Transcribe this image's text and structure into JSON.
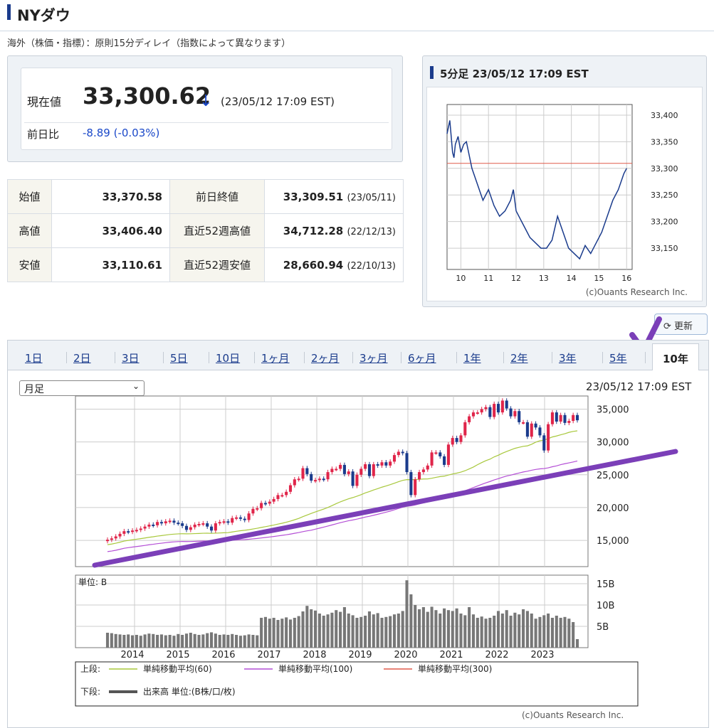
{
  "header": {
    "title": "NYダウ",
    "note": "海外（株価・指標）：原則15分ディレイ（指数によって異なります）"
  },
  "current": {
    "label": "現在値",
    "value": "33,300.62",
    "arrow": "↓",
    "timestamp": "(23/05/12 17:09 EST)",
    "change_label": "前日比",
    "change": "-8.89",
    "change_pct": "(-0.03%)"
  },
  "quotes": [
    {
      "k1": "始値",
      "v1": "33,370.58",
      "k2": "前日終値",
      "v2": "33,309.51",
      "d2": "(23/05/11)"
    },
    {
      "k1": "高値",
      "v1": "33,406.40",
      "k2": "直近52週高値",
      "v2": "34,712.28",
      "d2": "(22/12/13)"
    },
    {
      "k1": "安値",
      "v1": "33,110.61",
      "k2": "直近52週安値",
      "v2": "28,660.94",
      "d2": "(22/10/13)"
    }
  ],
  "intraday": {
    "title": "5分足 23/05/12 17:09 EST",
    "copyright": "(c)Ouants Research Inc.",
    "chart_data": {
      "type": "line",
      "x_ticks": [
        "10",
        "11",
        "12",
        "13",
        "14",
        "15",
        "16"
      ],
      "y_ticks": [
        "33,400",
        "33,350",
        "33,300",
        "33,250",
        "33,200",
        "33,150"
      ],
      "ylim": [
        33110,
        33420
      ],
      "xlim": [
        9.5,
        16.2
      ],
      "reference_line": 33309.51,
      "series": [
        {
          "x": [
            9.5,
            9.6,
            9.7,
            9.75,
            9.8,
            9.9,
            10.0,
            10.1,
            10.2,
            10.4,
            10.6,
            10.8,
            11.0,
            11.2,
            11.4,
            11.6,
            11.8,
            11.9,
            12.0,
            12.1,
            12.3,
            12.5,
            12.7,
            12.9,
            13.1,
            13.3,
            13.5,
            13.7,
            13.9,
            14.1,
            14.3,
            14.5,
            14.7,
            14.9,
            15.1,
            15.3,
            15.5,
            15.7,
            15.9,
            16.0
          ],
          "y": [
            33365,
            33390,
            33330,
            33320,
            33345,
            33360,
            33330,
            33345,
            33350,
            33300,
            33270,
            33240,
            33260,
            33230,
            33210,
            33220,
            33240,
            33260,
            33220,
            33210,
            33190,
            33170,
            33160,
            33150,
            33150,
            33165,
            33210,
            33180,
            33150,
            33140,
            33130,
            33155,
            33140,
            33160,
            33180,
            33210,
            33240,
            33260,
            33290,
            33300
          ]
        }
      ]
    }
  },
  "refresh_label": "更新",
  "tabs": [
    "1日",
    "2日",
    "3日",
    "5日",
    "10日",
    "1ヶ月",
    "2ヶ月",
    "3ヶ月",
    "6ヶ月",
    "1年",
    "2年",
    "3年",
    "5年",
    "10年"
  ],
  "selected_tab": "10年",
  "interval_select": "月足",
  "stamp": "23/05/12 17:09 EST",
  "long_chart": {
    "chart_data": {
      "type": "candlestick",
      "x_ticks": [
        "2014",
        "2015",
        "2016",
        "2017",
        "2018",
        "2019",
        "2020",
        "2021",
        "2022",
        "2023"
      ],
      "y_ticks": [
        "35,000",
        "30,000",
        "25,000",
        "20,000",
        "15,000"
      ],
      "ylim": [
        11000,
        37000
      ],
      "close": [
        15100,
        15300,
        15600,
        16000,
        16400,
        16300,
        16500,
        16600,
        16800,
        17100,
        17400,
        17300,
        17800,
        17600,
        17900,
        18000,
        17700,
        17600,
        17200,
        16600,
        17000,
        17400,
        17500,
        17600,
        17100,
        16500,
        17600,
        17800,
        17900,
        17700,
        18400,
        18500,
        18300,
        18100,
        19100,
        19800,
        19900,
        20700,
        20600,
        20900,
        21300,
        21900,
        21900,
        22400,
        23400,
        24300,
        24400,
        26000,
        25100,
        24100,
        24200,
        24400,
        24300,
        25400,
        25900,
        25900,
        26500,
        25100,
        25500,
        23300,
        25000,
        25900,
        26600,
        24800,
        26600,
        26400,
        26900,
        26400,
        27000,
        28000,
        28500,
        28300,
        25400,
        21900,
        24300,
        25400,
        25800,
        26400,
        28400,
        28400,
        27800,
        26500,
        29600,
        30600,
        30000,
        31000,
        33000,
        33900,
        34500,
        34500,
        35000,
        35300,
        33800,
        35800,
        34500,
        36300,
        35100,
        33900,
        34700,
        33000,
        33000,
        30800,
        32800,
        32200,
        31000,
        28700,
        32700,
        34500,
        33100,
        34100,
        32900,
        33200,
        34100,
        33300
      ]
    },
    "volume_label": "単位: B",
    "volume_ticks": [
      "15B",
      "10B",
      "5B"
    ],
    "volume": [
      3.5,
      3.4,
      3.2,
      3.1,
      3.0,
      3.1,
      2.9,
      3.0,
      2.8,
      3.1,
      3.3,
      3.2,
      3.0,
      3.1,
      2.9,
      3.0,
      2.8,
      3.2,
      3.0,
      3.3,
      3.5,
      3.2,
      3.0,
      3.1,
      3.4,
      3.6,
      3.3,
      3.0,
      3.1,
      3.0,
      3.2,
      3.0,
      2.8,
      2.9,
      3.1,
      3.0,
      2.9,
      7.0,
      7.2,
      6.8,
      7.0,
      6.5,
      6.8,
      7.1,
      6.6,
      7.0,
      7.4,
      8.5,
      9.8,
      9.0,
      8.7,
      8.0,
      7.5,
      7.8,
      8.2,
      8.8,
      8.4,
      9.5,
      8.0,
      7.6,
      7.0,
      7.2,
      7.5,
      8.5,
      7.8,
      8.1,
      7.0,
      7.2,
      7.4,
      7.8,
      8.0,
      8.6,
      15.8,
      12.5,
      10.0,
      9.0,
      9.5,
      8.4,
      9.6,
      8.8,
      8.0,
      9.2,
      8.8,
      8.6,
      9.2,
      8.0,
      7.6,
      9.5,
      7.8,
      7.0,
      7.3,
      6.8,
      7.0,
      7.5,
      8.6,
      8.0,
      8.8,
      7.5,
      8.2,
      7.8,
      9.0,
      8.6,
      8.0,
      6.8,
      7.2,
      7.6,
      8.0,
      7.0,
      7.5,
      7.0,
      7.2,
      6.8,
      6.0,
      2.0
    ],
    "legend": [
      {
        "prefix": "上段:",
        "label": "単純移動平均(60)",
        "color": "#a8c83c"
      },
      {
        "prefix": "",
        "label": "単純移動平均(100)",
        "color": "#b44fd6"
      },
      {
        "prefix": "",
        "label": "単純移動平均(300)",
        "color": "#e05a4a"
      },
      {
        "prefix": "下段:",
        "label": "出来高 単位:(B株/口/枚)",
        "color": "#555555"
      }
    ],
    "copyright": "(c)Ouants Research Inc."
  }
}
